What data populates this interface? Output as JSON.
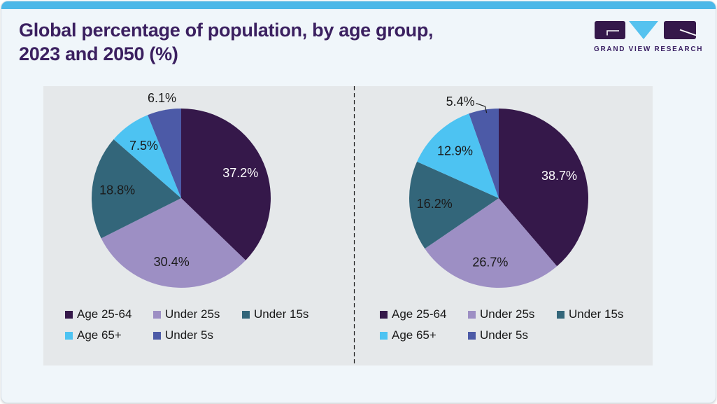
{
  "header": {
    "title_line1": "Global percentage of population, by age group,",
    "title_line2": "2023 and 2050 (%)",
    "brand_name": "GRAND VIEW RESEARCH"
  },
  "colors": {
    "accent_cyan": "#4db8e8",
    "logo_cyan": "#56c2ef",
    "brand_purple": "#35184a",
    "title_purple": "#3b2060",
    "page_bg": "#f0f6fa",
    "panel_bg": "#e5e8ea",
    "divider": "#1a1a1a"
  },
  "chart_data": [
    {
      "type": "pie",
      "year": "2023",
      "legend_position": "bottom",
      "slices": [
        {
          "label": "Age 25-64",
          "value": 37.2,
          "data_label": "37.2%",
          "color": "#35184a",
          "text_color": "#ffffff",
          "placement": "inside",
          "leader": false
        },
        {
          "label": "Under 25s",
          "value": 30.4,
          "data_label": "30.4%",
          "color": "#9d8fc4",
          "text_color": "#1a1a1a",
          "placement": "inside",
          "leader": false
        },
        {
          "label": "Under 15s",
          "value": 18.8,
          "data_label": "18.8%",
          "color": "#33667a",
          "text_color": "#1a1a1a",
          "placement": "inside",
          "leader": false
        },
        {
          "label": "Age 65+",
          "value": 7.5,
          "data_label": "7.5%",
          "color": "#4dc3f2",
          "text_color": "#1a1a1a",
          "placement": "inside",
          "leader": false
        },
        {
          "label": "Under 5s",
          "value": 6.1,
          "data_label": "6.1%",
          "color": "#4c5aa7",
          "text_color": "#1a1a1a",
          "placement": "outside",
          "leader": false
        }
      ]
    },
    {
      "type": "pie",
      "year": "2050",
      "legend_position": "bottom",
      "slices": [
        {
          "label": "Age 25-64",
          "value": 38.7,
          "data_label": "38.7%",
          "color": "#35184a",
          "text_color": "#ffffff",
          "placement": "inside",
          "leader": false
        },
        {
          "label": "Under 25s",
          "value": 26.7,
          "data_label": "26.7%",
          "color": "#9d8fc4",
          "text_color": "#1a1a1a",
          "placement": "inside",
          "leader": false
        },
        {
          "label": "Under 15s",
          "value": 16.2,
          "data_label": "16.2%",
          "color": "#33667a",
          "text_color": "#1a1a1a",
          "placement": "inside",
          "leader": false
        },
        {
          "label": "Age 65+",
          "value": 12.9,
          "data_label": "12.9%",
          "color": "#4dc3f2",
          "text_color": "#1a1a1a",
          "placement": "inside",
          "leader": false
        },
        {
          "label": "Under 5s",
          "value": 5.4,
          "data_label": "5.4%",
          "color": "#4c5aa7",
          "text_color": "#1a1a1a",
          "placement": "outside",
          "leader": true
        }
      ]
    }
  ]
}
